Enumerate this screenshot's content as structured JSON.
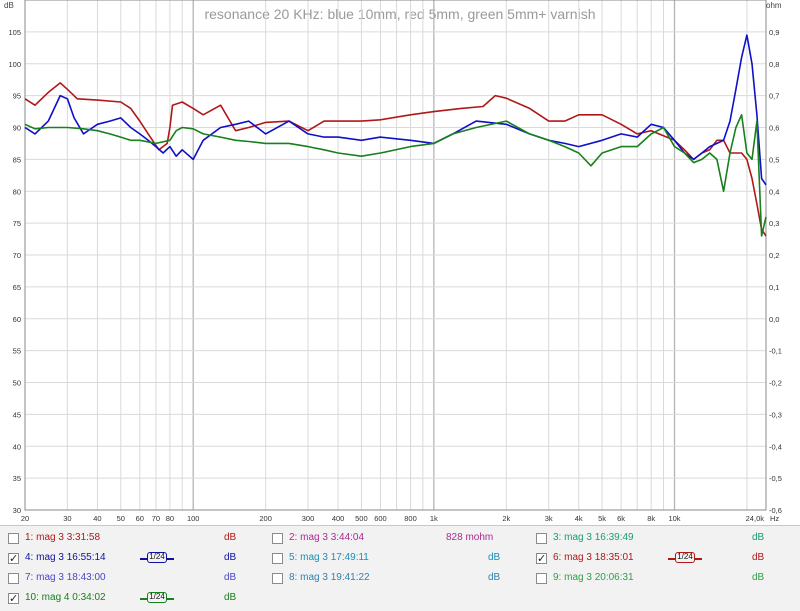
{
  "chart_data": {
    "type": "line",
    "title": "resonance 20 KHz: blue 10mm, red 5mm, green 5mm+ varnish",
    "left_unit": "dB",
    "right_unit": "ohm",
    "x_scale": "log",
    "xlim": [
      20,
      24000
    ],
    "ylim": [
      30,
      110
    ],
    "y2lim": [
      -0.6,
      1.0
    ],
    "grid": true,
    "y_ticks": [
      "105",
      "100",
      "95",
      "90",
      "85",
      "80",
      "75",
      "70",
      "65",
      "60",
      "55",
      "50",
      "45",
      "40",
      "35",
      "30"
    ],
    "y2_ticks": [
      "0,9",
      "0,8",
      "0,7",
      "0,6",
      "0,5",
      "0,4",
      "0,3",
      "0,2",
      "0,1",
      "0,0",
      "-0,1",
      "-0,2",
      "-0,3",
      "-0,4",
      "-0,5",
      "-0,6"
    ],
    "x_ticks": [
      "20",
      "30",
      "40",
      "50",
      "60",
      "70",
      "80",
      "100",
      "200",
      "300",
      "400",
      "500",
      "600",
      "800",
      "1k",
      "2k",
      "3k",
      "4k",
      "5k",
      "6k",
      "8k",
      "10k",
      "24,0k"
    ],
    "x_unit": "Hz",
    "series": [
      {
        "name": "6: mag 3 18:35:01",
        "color": "#b01818",
        "points": [
          [
            20,
            94.5
          ],
          [
            22,
            93.5
          ],
          [
            25,
            95.5
          ],
          [
            28,
            97
          ],
          [
            30,
            96
          ],
          [
            33,
            94.5
          ],
          [
            40,
            94.3
          ],
          [
            50,
            94
          ],
          [
            55,
            93
          ],
          [
            60,
            91
          ],
          [
            65,
            89
          ],
          [
            72,
            86.5
          ],
          [
            78,
            87.5
          ],
          [
            80,
            90
          ],
          [
            82,
            93.5
          ],
          [
            90,
            94
          ],
          [
            100,
            93
          ],
          [
            110,
            92
          ],
          [
            130,
            93.5
          ],
          [
            150,
            89.5
          ],
          [
            170,
            90
          ],
          [
            200,
            90.8
          ],
          [
            250,
            91
          ],
          [
            300,
            89.5
          ],
          [
            350,
            91
          ],
          [
            400,
            91
          ],
          [
            500,
            91
          ],
          [
            600,
            91.2
          ],
          [
            800,
            92
          ],
          [
            1000,
            92.5
          ],
          [
            1300,
            93
          ],
          [
            1600,
            93.3
          ],
          [
            1800,
            95
          ],
          [
            2000,
            94.6
          ],
          [
            2500,
            93
          ],
          [
            3000,
            91
          ],
          [
            3500,
            91
          ],
          [
            4000,
            92
          ],
          [
            5000,
            92
          ],
          [
            6000,
            90.5
          ],
          [
            7000,
            89
          ],
          [
            8000,
            89.5
          ],
          [
            10000,
            88
          ],
          [
            11000,
            86.5
          ],
          [
            12000,
            85
          ],
          [
            13000,
            86
          ],
          [
            14000,
            86.5
          ],
          [
            15000,
            88
          ],
          [
            16000,
            88
          ],
          [
            17000,
            86
          ],
          [
            18000,
            86
          ],
          [
            19000,
            86
          ],
          [
            20000,
            85
          ],
          [
            21000,
            82
          ],
          [
            22000,
            78
          ],
          [
            23000,
            74
          ],
          [
            24000,
            73
          ]
        ]
      },
      {
        "name": "4: mag 3 16:55:14",
        "color": "#1010c8",
        "points": [
          [
            20,
            90
          ],
          [
            22,
            89
          ],
          [
            25,
            91
          ],
          [
            28,
            95
          ],
          [
            30,
            94.5
          ],
          [
            32,
            91.5
          ],
          [
            35,
            89
          ],
          [
            40,
            90.5
          ],
          [
            45,
            91
          ],
          [
            50,
            91.5
          ],
          [
            55,
            90
          ],
          [
            60,
            89
          ],
          [
            65,
            88
          ],
          [
            70,
            87
          ],
          [
            75,
            86
          ],
          [
            80,
            87
          ],
          [
            85,
            85.5
          ],
          [
            90,
            86.5
          ],
          [
            100,
            85
          ],
          [
            110,
            88
          ],
          [
            130,
            90
          ],
          [
            150,
            90.5
          ],
          [
            170,
            91
          ],
          [
            200,
            89
          ],
          [
            250,
            91
          ],
          [
            300,
            89
          ],
          [
            350,
            88.5
          ],
          [
            400,
            88.5
          ],
          [
            500,
            88
          ],
          [
            600,
            88.5
          ],
          [
            800,
            88
          ],
          [
            1000,
            87.5
          ],
          [
            1200,
            89
          ],
          [
            1500,
            91
          ],
          [
            2000,
            90.5
          ],
          [
            2500,
            89
          ],
          [
            3000,
            88
          ],
          [
            3500,
            87.5
          ],
          [
            4000,
            87
          ],
          [
            5000,
            88
          ],
          [
            6000,
            89
          ],
          [
            7000,
            88.5
          ],
          [
            8000,
            90.5
          ],
          [
            9000,
            90
          ],
          [
            10000,
            88
          ],
          [
            11000,
            86
          ],
          [
            12000,
            85
          ],
          [
            13000,
            86
          ],
          [
            14000,
            87
          ],
          [
            15000,
            87.5
          ],
          [
            16000,
            88
          ],
          [
            17000,
            91
          ],
          [
            18000,
            96
          ],
          [
            19000,
            101
          ],
          [
            20000,
            104.5
          ],
          [
            21000,
            100
          ],
          [
            22000,
            92
          ],
          [
            23000,
            82
          ],
          [
            24000,
            81
          ]
        ]
      },
      {
        "name": "10: mag 4 0:34:02",
        "color": "#18801c",
        "points": [
          [
            20,
            90.5
          ],
          [
            22,
            89.8
          ],
          [
            25,
            90
          ],
          [
            30,
            90
          ],
          [
            35,
            89.8
          ],
          [
            40,
            89.5
          ],
          [
            45,
            89
          ],
          [
            50,
            88.5
          ],
          [
            55,
            88
          ],
          [
            60,
            88
          ],
          [
            70,
            87.5
          ],
          [
            80,
            88
          ],
          [
            85,
            89.5
          ],
          [
            90,
            90
          ],
          [
            100,
            89.8
          ],
          [
            110,
            89
          ],
          [
            130,
            88.5
          ],
          [
            150,
            88
          ],
          [
            170,
            87.8
          ],
          [
            200,
            87.5
          ],
          [
            250,
            87.5
          ],
          [
            300,
            87
          ],
          [
            350,
            86.5
          ],
          [
            400,
            86
          ],
          [
            500,
            85.5
          ],
          [
            600,
            86
          ],
          [
            800,
            87
          ],
          [
            1000,
            87.5
          ],
          [
            1200,
            89
          ],
          [
            1500,
            90
          ],
          [
            2000,
            91
          ],
          [
            2500,
            89
          ],
          [
            3000,
            88
          ],
          [
            3500,
            87
          ],
          [
            4000,
            86
          ],
          [
            4500,
            84
          ],
          [
            5000,
            86
          ],
          [
            6000,
            87
          ],
          [
            7000,
            87
          ],
          [
            8000,
            89
          ],
          [
            9000,
            90
          ],
          [
            10000,
            87
          ],
          [
            11000,
            86
          ],
          [
            12000,
            84.5
          ],
          [
            13000,
            85
          ],
          [
            14000,
            86
          ],
          [
            15000,
            85
          ],
          [
            16000,
            80
          ],
          [
            17000,
            86
          ],
          [
            18000,
            90
          ],
          [
            19000,
            92
          ],
          [
            20000,
            86
          ],
          [
            21000,
            85
          ],
          [
            22000,
            91
          ],
          [
            23000,
            73
          ],
          [
            24000,
            76
          ]
        ]
      }
    ]
  },
  "legend": [
    {
      "label": "1: mag 3 3:31:58",
      "checked": false,
      "unit": "dB",
      "smooth": "",
      "color": "#b01818"
    },
    {
      "label": "2: mag 3 3:44:04",
      "checked": false,
      "unit": "828 mohm",
      "smooth": "",
      "color": "#b02890"
    },
    {
      "label": "3: mag 3 16:39:49",
      "checked": false,
      "unit": "dB",
      "smooth": "",
      "color": "#18a06c"
    },
    {
      "label": "4: mag 3 16:55:14",
      "checked": true,
      "unit": "dB",
      "smooth": "1/24",
      "color": "#1010a0"
    },
    {
      "label": "5: mag 3 17:49:11",
      "checked": false,
      "unit": "dB",
      "smooth": "",
      "color": "#1890b8"
    },
    {
      "label": "6: mag 3 18:35:01",
      "checked": true,
      "unit": "dB",
      "smooth": "1/24",
      "color": "#b01818"
    },
    {
      "label": "7: mag 3 18:43:00",
      "checked": false,
      "unit": "dB",
      "smooth": "",
      "color": "#4848c8"
    },
    {
      "label": "8: mag 3 19:41:22",
      "checked": false,
      "unit": "dB",
      "smooth": "",
      "color": "#3080b0"
    },
    {
      "label": "9: mag 3 20:06:31",
      "checked": false,
      "unit": "dB",
      "smooth": "",
      "color": "#30a048"
    },
    {
      "label": "10: mag 4 0:34:02",
      "checked": true,
      "unit": "dB",
      "smooth": "1/24",
      "color": "#18801c"
    }
  ]
}
